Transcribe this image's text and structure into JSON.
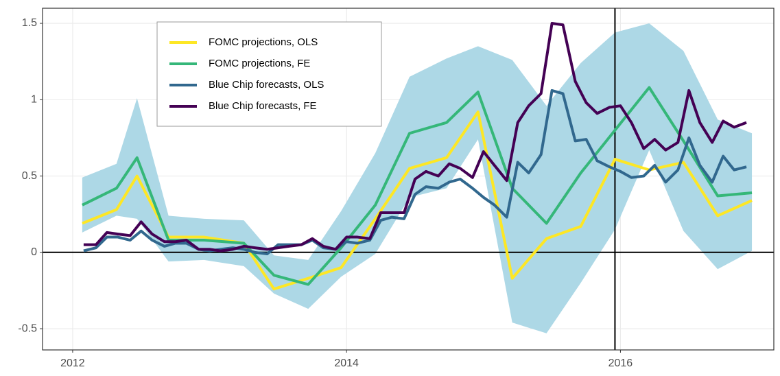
{
  "chart_data": {
    "type": "line",
    "xlim": [
      2011.78,
      2017.12
    ],
    "ylim": [
      -0.639,
      1.599
    ],
    "xticks": [
      2012,
      2014,
      2016
    ],
    "yticks": [
      -0.5,
      0.0,
      0.5,
      1.0,
      1.5
    ],
    "grid": true,
    "hline": 0,
    "vline": 2015.96,
    "legend": "top-left",
    "band": {
      "color": "#add8e6",
      "x": [
        2012.07,
        2012.32,
        2012.47,
        2012.7,
        2012.96,
        2013.25,
        2013.47,
        2013.72,
        2013.96,
        2014.21,
        2014.46,
        2014.73,
        2014.96,
        2015.21,
        2015.46,
        2015.71,
        2015.96,
        2016.21,
        2016.46,
        2016.71,
        2016.96
      ],
      "upper": [
        0.49,
        0.58,
        1.01,
        0.24,
        0.22,
        0.21,
        -0.02,
        -0.05,
        0.27,
        0.65,
        1.15,
        1.27,
        1.35,
        1.26,
        0.96,
        1.24,
        1.44,
        1.5,
        1.32,
        0.87,
        0.78
      ],
      "lower": [
        0.13,
        0.24,
        0.22,
        -0.06,
        -0.05,
        -0.09,
        -0.27,
        -0.37,
        -0.16,
        -0.01,
        0.36,
        0.42,
        0.74,
        -0.46,
        -0.53,
        -0.2,
        0.15,
        0.67,
        0.14,
        -0.11,
        0.01
      ]
    },
    "series": [
      {
        "name": "FOMC projections, OLS",
        "color": "#fde725",
        "x": [
          2012.07,
          2012.32,
          2012.47,
          2012.7,
          2012.96,
          2013.25,
          2013.47,
          2013.72,
          2013.96,
          2014.21,
          2014.46,
          2014.73,
          2014.96,
          2015.21,
          2015.46,
          2015.71,
          2015.96,
          2016.21,
          2016.46,
          2016.71,
          2016.96
        ],
        "values": [
          0.19,
          0.28,
          0.5,
          0.1,
          0.1,
          0.06,
          -0.24,
          -0.17,
          -0.1,
          0.22,
          0.55,
          0.62,
          0.92,
          -0.17,
          0.09,
          0.17,
          0.61,
          0.54,
          0.59,
          0.24,
          0.34
        ]
      },
      {
        "name": "FOMC projections, FE",
        "color": "#35b779",
        "x": [
          2012.07,
          2012.32,
          2012.47,
          2012.7,
          2012.96,
          2013.25,
          2013.47,
          2013.72,
          2013.96,
          2014.21,
          2014.46,
          2014.73,
          2014.96,
          2015.21,
          2015.46,
          2015.71,
          2015.96,
          2016.21,
          2016.46,
          2016.71,
          2016.96
        ],
        "values": [
          0.31,
          0.42,
          0.62,
          0.08,
          0.08,
          0.06,
          -0.15,
          -0.21,
          0.03,
          0.31,
          0.78,
          0.85,
          1.05,
          0.42,
          0.19,
          0.52,
          0.8,
          1.08,
          0.73,
          0.37,
          0.39
        ]
      },
      {
        "name": "Blue Chip forecasts, OLS",
        "color": "#31688e",
        "x": [
          2012.08,
          2012.17,
          2012.25,
          2012.33,
          2012.42,
          2012.5,
          2012.58,
          2012.67,
          2012.75,
          2012.83,
          2012.92,
          2013.0,
          2013.08,
          2013.17,
          2013.25,
          2013.33,
          2013.42,
          2013.5,
          2013.58,
          2013.67,
          2013.75,
          2013.83,
          2013.92,
          2014.0,
          2014.08,
          2014.17,
          2014.25,
          2014.33,
          2014.42,
          2014.5,
          2014.58,
          2014.67,
          2014.75,
          2014.83,
          2014.92,
          2015.0,
          2015.08,
          2015.17,
          2015.25,
          2015.33,
          2015.42,
          2015.5,
          2015.58,
          2015.67,
          2015.75,
          2015.83,
          2015.92,
          2016.0,
          2016.08,
          2016.17,
          2016.25,
          2016.33,
          2016.42,
          2016.5,
          2016.58,
          2016.67,
          2016.75,
          2016.83,
          2016.92
        ],
        "values": [
          0.01,
          0.03,
          0.1,
          0.1,
          0.08,
          0.14,
          0.08,
          0.04,
          0.06,
          0.06,
          0.02,
          0.01,
          0.02,
          0.03,
          0.02,
          0.0,
          -0.01,
          0.05,
          0.05,
          0.05,
          0.08,
          0.03,
          0.02,
          0.07,
          0.06,
          0.08,
          0.21,
          0.23,
          0.22,
          0.38,
          0.43,
          0.42,
          0.46,
          0.48,
          0.42,
          0.36,
          0.31,
          0.23,
          0.59,
          0.52,
          0.64,
          1.06,
          1.04,
          0.73,
          0.74,
          0.6,
          0.56,
          0.53,
          0.49,
          0.5,
          0.57,
          0.46,
          0.54,
          0.75,
          0.57,
          0.46,
          0.63,
          0.54,
          0.56
        ]
      },
      {
        "name": "Blue Chip forecasts, FE",
        "color": "#440154",
        "x": [
          2012.08,
          2012.17,
          2012.25,
          2012.33,
          2012.42,
          2012.5,
          2012.58,
          2012.67,
          2012.75,
          2012.83,
          2012.92,
          2013.0,
          2013.08,
          2013.17,
          2013.25,
          2013.33,
          2013.42,
          2013.5,
          2013.58,
          2013.67,
          2013.75,
          2013.83,
          2013.92,
          2014.0,
          2014.08,
          2014.17,
          2014.25,
          2014.33,
          2014.42,
          2014.5,
          2014.58,
          2014.67,
          2014.75,
          2014.83,
          2014.92,
          2015.0,
          2015.08,
          2015.17,
          2015.25,
          2015.33,
          2015.42,
          2015.5,
          2015.58,
          2015.67,
          2015.75,
          2015.83,
          2015.92,
          2016.0,
          2016.08,
          2016.17,
          2016.25,
          2016.33,
          2016.42,
          2016.5,
          2016.58,
          2016.67,
          2016.75,
          2016.83,
          2016.92
        ],
        "values": [
          0.05,
          0.05,
          0.13,
          0.12,
          0.11,
          0.2,
          0.12,
          0.07,
          0.07,
          0.08,
          0.02,
          0.02,
          0.01,
          0.02,
          0.04,
          0.03,
          0.02,
          0.03,
          0.04,
          0.05,
          0.09,
          0.04,
          0.02,
          0.1,
          0.1,
          0.09,
          0.26,
          0.26,
          0.26,
          0.48,
          0.53,
          0.5,
          0.58,
          0.55,
          0.49,
          0.66,
          0.57,
          0.47,
          0.85,
          0.96,
          1.04,
          1.5,
          1.49,
          1.12,
          0.98,
          0.91,
          0.95,
          0.96,
          0.85,
          0.68,
          0.74,
          0.67,
          0.72,
          1.06,
          0.85,
          0.72,
          0.86,
          0.82,
          0.85
        ]
      }
    ]
  }
}
